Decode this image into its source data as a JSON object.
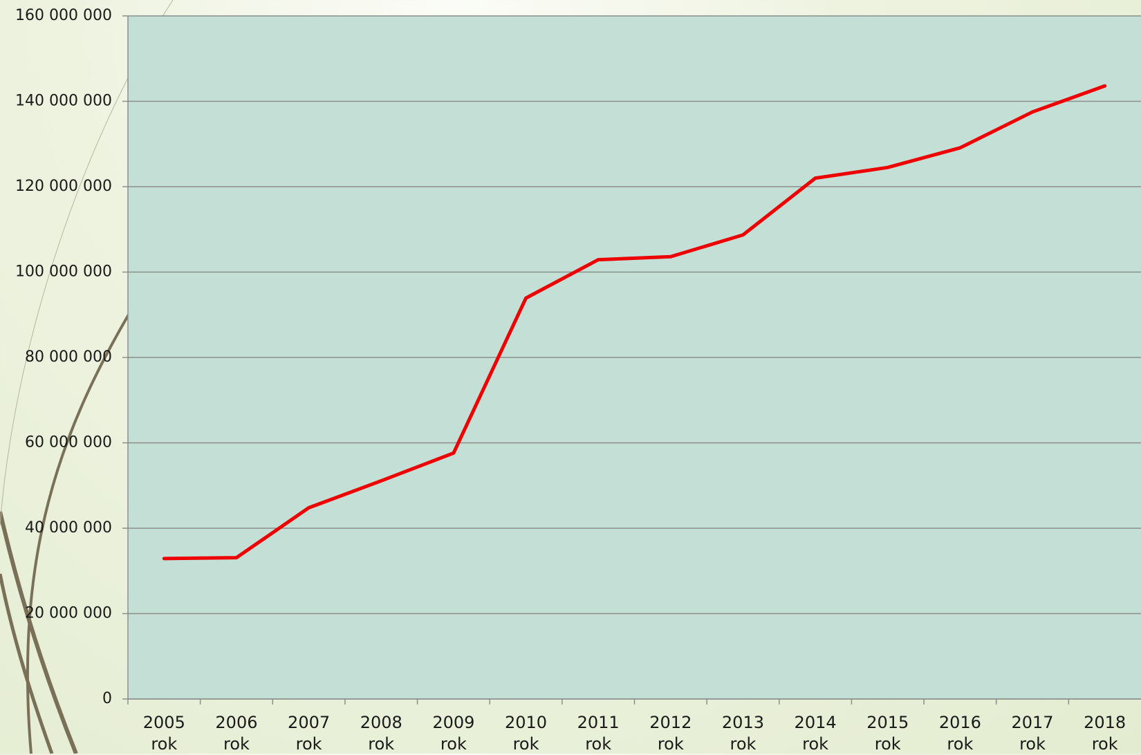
{
  "chart_data": {
    "type": "line",
    "categories": [
      "2005 rok",
      "2006 rok",
      "2007 rok",
      "2008 rok",
      "2009 rok",
      "2010 rok",
      "2011 rok",
      "2012 rok",
      "2013 rok",
      "2014 rok",
      "2015 rok",
      "2016 rok",
      "2017 rok",
      "2018 rok"
    ],
    "series": [
      {
        "color": "#ee0000",
        "values": [
          32900000,
          33100000,
          44800000,
          51100000,
          57600000,
          93900000,
          102900000,
          103600000,
          108700000,
          122000000,
          124500000,
          129100000,
          137500000,
          143600000
        ]
      }
    ],
    "ylim": [
      0,
      160000000
    ],
    "yticks": [
      0,
      {
        "value": 20000000,
        "label": "20 000 000"
      },
      {
        "value": 40000000,
        "label": "40 000 000"
      },
      {
        "value": 60000000,
        "label": "60 000 000"
      },
      {
        "value": 80000000,
        "label": "80 000 000"
      },
      {
        "value": 100000000,
        "label": "100 000 000"
      },
      {
        "value": 120000000,
        "label": "120 000 000"
      },
      {
        "value": 140000000,
        "label": "140 000 000"
      },
      {
        "value": 160000000,
        "label": "160 000 000"
      }
    ],
    "grid": true
  }
}
